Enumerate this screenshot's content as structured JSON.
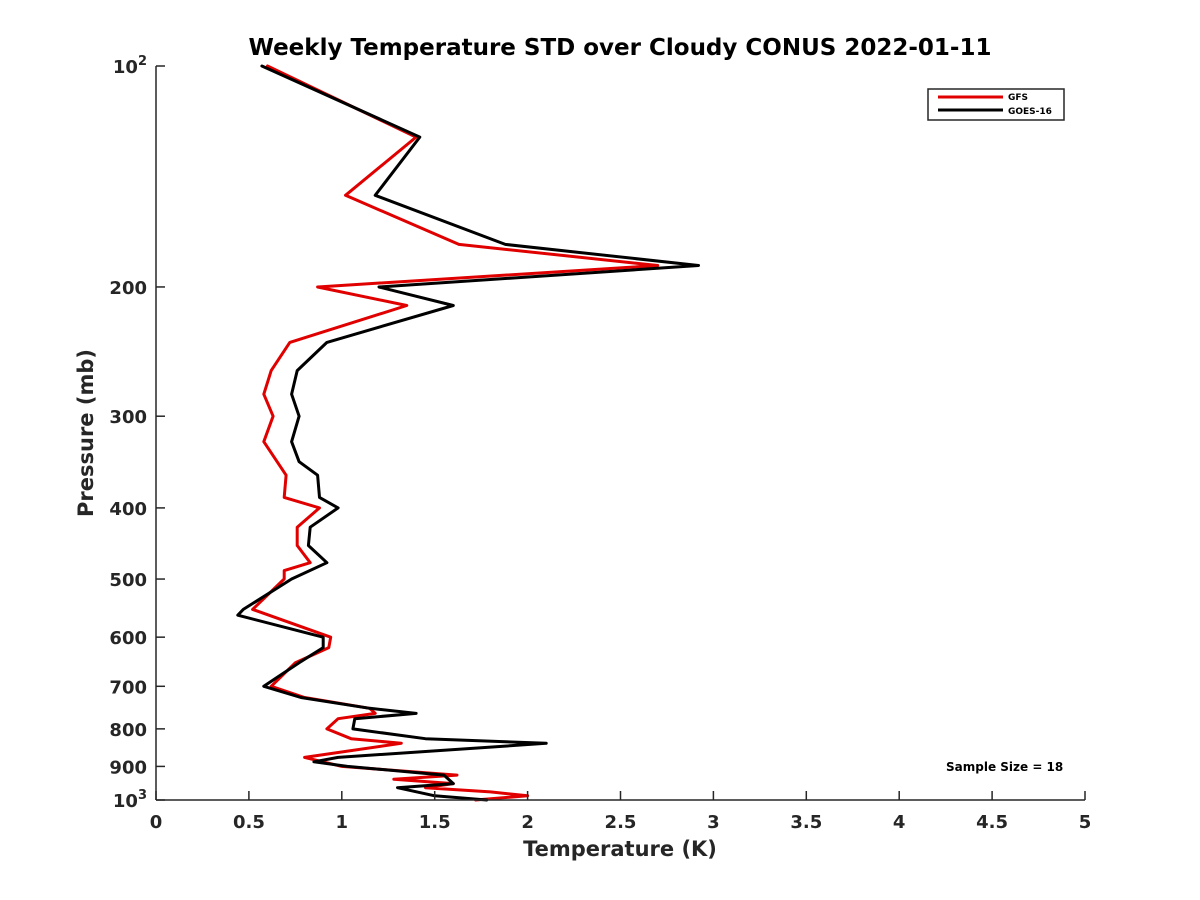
{
  "chart_data": {
    "type": "line",
    "title": "Weekly Temperature STD over Cloudy CONUS 2022-01-11",
    "xlabel": "Temperature (K)",
    "ylabel": "Pressure (mb)",
    "xlim": [
      0,
      5
    ],
    "ylim": [
      100,
      1000
    ],
    "y_scale": "log",
    "y_direction": "reversed",
    "x_ticks": [
      "0",
      "0.5",
      "1",
      "1.5",
      "2",
      "2.5",
      "3",
      "3.5",
      "4",
      "4.5",
      "5"
    ],
    "y_ticks": [
      {
        "value": 100,
        "base": "10",
        "exp": "2"
      },
      {
        "value": 200,
        "label": "200"
      },
      {
        "value": 300,
        "label": "300"
      },
      {
        "value": 400,
        "label": "400"
      },
      {
        "value": 500,
        "label": "500"
      },
      {
        "value": 600,
        "label": "600"
      },
      {
        "value": 700,
        "label": "700"
      },
      {
        "value": 800,
        "label": "800"
      },
      {
        "value": 900,
        "label": "900"
      },
      {
        "value": 1000,
        "base": "10",
        "exp": "3"
      }
    ],
    "grid": false,
    "legend_position": "top-right",
    "annotation": "Sample Size = 18",
    "series": [
      {
        "name": "GFS",
        "color": "#e00000",
        "points": [
          [
            0.6,
            100
          ],
          [
            1.4,
            125
          ],
          [
            1.02,
            150
          ],
          [
            1.63,
            175
          ],
          [
            2.7,
            187
          ],
          [
            0.87,
            200
          ],
          [
            1.35,
            212
          ],
          [
            0.72,
            238
          ],
          [
            0.62,
            260
          ],
          [
            0.58,
            280
          ],
          [
            0.63,
            300
          ],
          [
            0.58,
            325
          ],
          [
            0.7,
            361
          ],
          [
            0.69,
            387
          ],
          [
            0.88,
            400
          ],
          [
            0.76,
            425
          ],
          [
            0.76,
            450
          ],
          [
            0.83,
            475
          ],
          [
            0.69,
            487
          ],
          [
            0.69,
            500
          ],
          [
            0.52,
            550
          ],
          [
            0.94,
            600
          ],
          [
            0.93,
            620
          ],
          [
            0.75,
            650
          ],
          [
            0.62,
            700
          ],
          [
            0.8,
            725
          ],
          [
            1.15,
            750
          ],
          [
            1.18,
            762
          ],
          [
            0.98,
            775
          ],
          [
            0.92,
            800
          ],
          [
            1.05,
            825
          ],
          [
            1.32,
            837
          ],
          [
            0.8,
            875
          ],
          [
            1.0,
            900
          ],
          [
            1.62,
            925
          ],
          [
            1.28,
            937
          ],
          [
            1.6,
            950
          ],
          [
            1.45,
            962
          ],
          [
            1.8,
            975
          ],
          [
            2.0,
            987
          ],
          [
            1.72,
            1000
          ]
        ]
      },
      {
        "name": "GOES-16",
        "color": "#000000",
        "points": [
          [
            0.57,
            100
          ],
          [
            1.42,
            125
          ],
          [
            1.18,
            150
          ],
          [
            1.88,
            175
          ],
          [
            2.92,
            187
          ],
          [
            1.2,
            200
          ],
          [
            1.6,
            212
          ],
          [
            0.92,
            238
          ],
          [
            0.76,
            260
          ],
          [
            0.73,
            280
          ],
          [
            0.77,
            300
          ],
          [
            0.73,
            325
          ],
          [
            0.77,
            346
          ],
          [
            0.87,
            361
          ],
          [
            0.88,
            387
          ],
          [
            0.98,
            400
          ],
          [
            0.83,
            425
          ],
          [
            0.82,
            450
          ],
          [
            0.92,
            475
          ],
          [
            0.73,
            500
          ],
          [
            0.47,
            550
          ],
          [
            0.44,
            560
          ],
          [
            0.9,
            600
          ],
          [
            0.9,
            620
          ],
          [
            0.77,
            650
          ],
          [
            0.58,
            700
          ],
          [
            0.78,
            725
          ],
          [
            1.15,
            750
          ],
          [
            1.4,
            762
          ],
          [
            1.07,
            775
          ],
          [
            1.06,
            800
          ],
          [
            1.45,
            825
          ],
          [
            2.1,
            837
          ],
          [
            0.98,
            875
          ],
          [
            0.85,
            887
          ],
          [
            1.03,
            900
          ],
          [
            1.55,
            925
          ],
          [
            1.6,
            950
          ],
          [
            1.3,
            962
          ],
          [
            1.5,
            987
          ],
          [
            1.78,
            1000
          ]
        ]
      }
    ]
  }
}
